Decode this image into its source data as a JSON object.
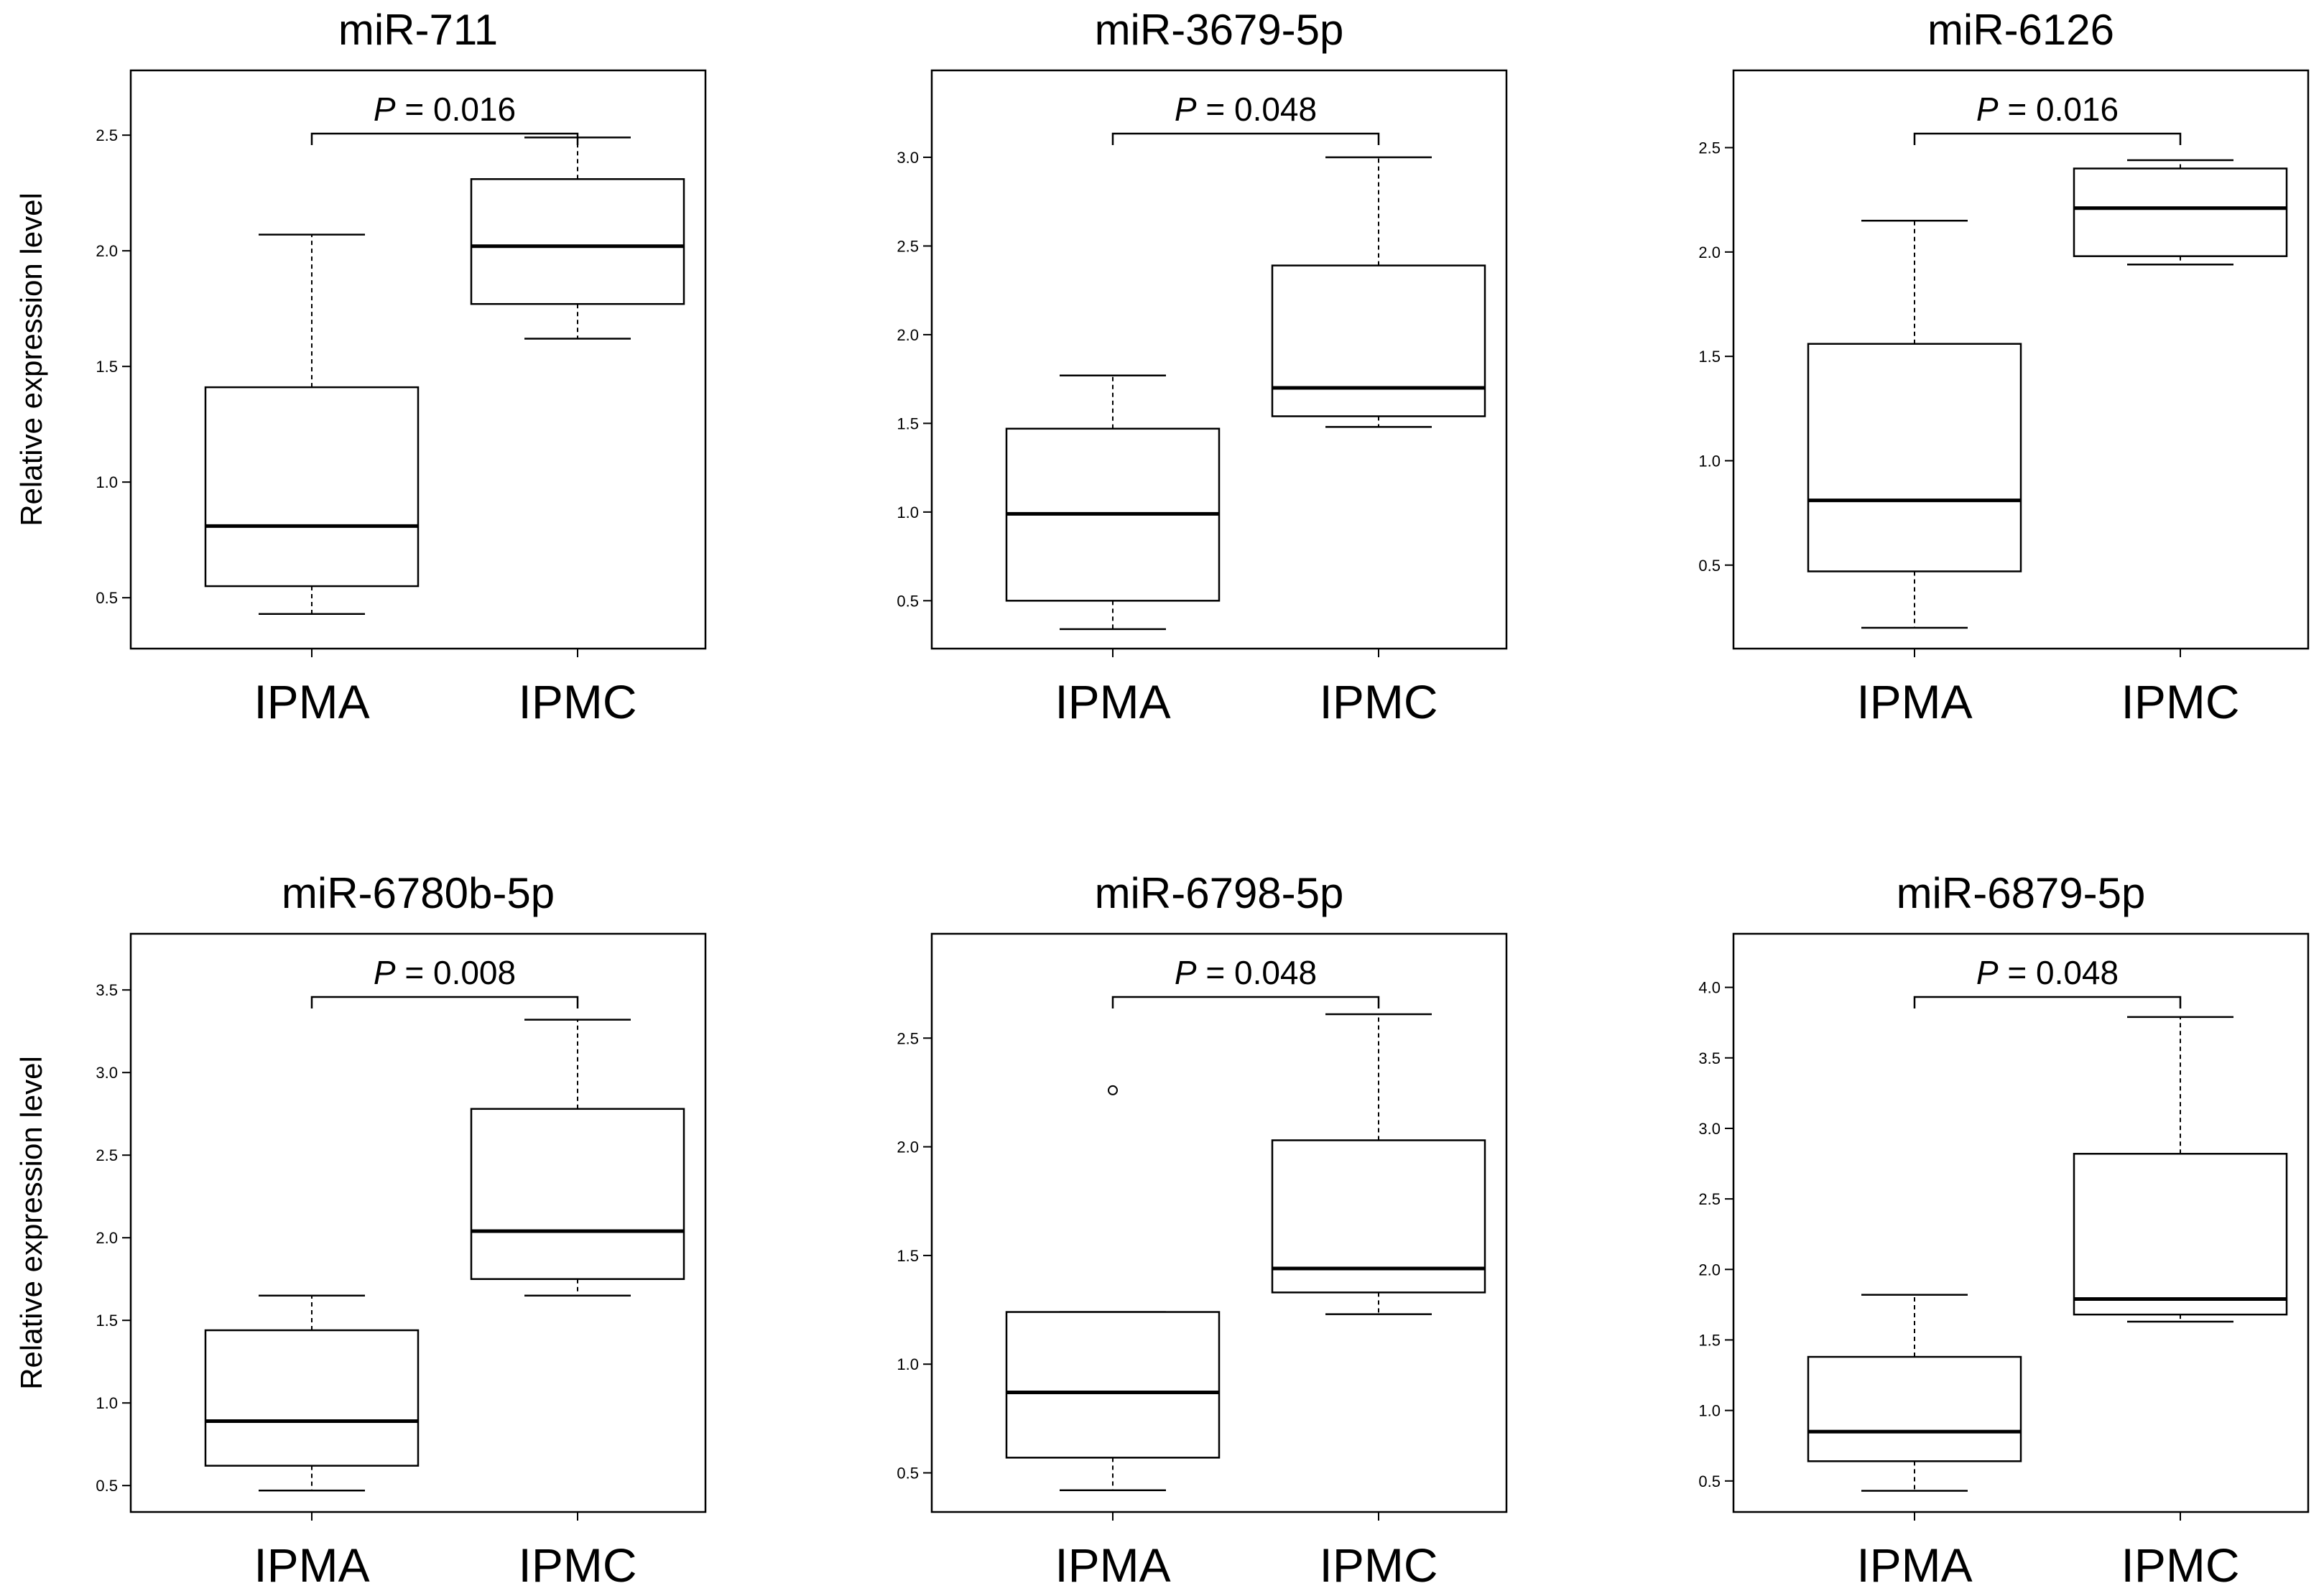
{
  "y_axis_label": "Relative expression level",
  "chart_data": [
    {
      "type": "boxplot",
      "title": "miR-711",
      "categories": [
        "IPMA",
        "IPMC"
      ],
      "ylabel": "Relative expression level",
      "ylim": [
        0.28,
        2.78
      ],
      "yticks": [
        "0.5",
        "1.0",
        "1.5",
        "2.0",
        "2.5"
      ],
      "p_value_prefix": "P",
      "p_value_text": " = 0.016",
      "series": [
        {
          "category": "IPMA",
          "min": 0.43,
          "q1": 0.55,
          "median": 0.81,
          "q3": 1.41,
          "max": 2.07,
          "outliers": []
        },
        {
          "category": "IPMC",
          "min": 1.62,
          "q1": 1.77,
          "median": 2.02,
          "q3": 2.31,
          "max": 2.49,
          "outliers": []
        }
      ]
    },
    {
      "type": "boxplot",
      "title": "miR-3679-5p",
      "categories": [
        "IPMA",
        "IPMC"
      ],
      "ylabel": "",
      "ylim": [
        0.23,
        3.49
      ],
      "yticks": [
        "0.5",
        "1.0",
        "1.5",
        "2.0",
        "2.5",
        "3.0"
      ],
      "p_value_prefix": "P",
      "p_value_text": " = 0.048",
      "series": [
        {
          "category": "IPMA",
          "min": 0.34,
          "q1": 0.5,
          "median": 0.99,
          "q3": 1.47,
          "max": 1.77,
          "outliers": []
        },
        {
          "category": "IPMC",
          "min": 1.48,
          "q1": 1.54,
          "median": 1.7,
          "q3": 2.39,
          "max": 3.0,
          "outliers": []
        }
      ]
    },
    {
      "type": "boxplot",
      "title": "miR-6126",
      "categories": [
        "IPMA",
        "IPMC"
      ],
      "ylabel": "",
      "ylim": [
        0.1,
        2.87
      ],
      "yticks": [
        "0.5",
        "1.0",
        "1.5",
        "2.0",
        "2.5"
      ],
      "p_value_prefix": "P",
      "p_value_text": " = 0.016",
      "series": [
        {
          "category": "IPMA",
          "min": 0.2,
          "q1": 0.47,
          "median": 0.81,
          "q3": 1.56,
          "max": 2.15,
          "outliers": []
        },
        {
          "category": "IPMC",
          "min": 1.94,
          "q1": 1.98,
          "median": 2.21,
          "q3": 2.4,
          "max": 2.44,
          "outliers": []
        }
      ]
    },
    {
      "type": "boxplot",
      "title": "miR-6780b-5p",
      "categories": [
        "IPMA",
        "IPMC"
      ],
      "ylabel": "Relative expression level",
      "ylim": [
        0.34,
        3.84
      ],
      "yticks": [
        "0.5",
        "1.0",
        "1.5",
        "2.0",
        "2.5",
        "3.0",
        "3.5"
      ],
      "p_value_prefix": "P",
      "p_value_text": " = 0.008",
      "series": [
        {
          "category": "IPMA",
          "min": 0.47,
          "q1": 0.62,
          "median": 0.89,
          "q3": 1.44,
          "max": 1.65,
          "outliers": []
        },
        {
          "category": "IPMC",
          "min": 1.65,
          "q1": 1.75,
          "median": 2.04,
          "q3": 2.78,
          "max": 3.32,
          "outliers": []
        }
      ]
    },
    {
      "type": "boxplot",
      "title": "miR-6798-5p",
      "categories": [
        "IPMA",
        "IPMC"
      ],
      "ylabel": "",
      "ylim": [
        0.32,
        2.98
      ],
      "yticks": [
        "0.5",
        "1.0",
        "1.5",
        "2.0",
        "2.5"
      ],
      "p_value_prefix": "P",
      "p_value_text": " = 0.048",
      "series": [
        {
          "category": "IPMA",
          "min": 0.42,
          "q1": 0.57,
          "median": 0.87,
          "q3": 1.24,
          "max": 1.24,
          "outliers": [
            2.26
          ]
        },
        {
          "category": "IPMC",
          "min": 1.23,
          "q1": 1.33,
          "median": 1.44,
          "q3": 2.03,
          "max": 2.61,
          "outliers": []
        }
      ]
    },
    {
      "type": "boxplot",
      "title": "miR-6879-5p",
      "categories": [
        "IPMA",
        "IPMC"
      ],
      "ylabel": "",
      "ylim": [
        0.28,
        4.38
      ],
      "yticks": [
        "0.5",
        "1.0",
        "1.5",
        "2.0",
        "2.5",
        "3.0",
        "3.5",
        "4.0"
      ],
      "p_value_prefix": "P",
      "p_value_text": " = 0.048",
      "series": [
        {
          "category": "IPMA",
          "min": 0.43,
          "q1": 0.64,
          "median": 0.85,
          "q3": 1.38,
          "max": 1.82,
          "outliers": []
        },
        {
          "category": "IPMC",
          "min": 1.63,
          "q1": 1.68,
          "median": 1.79,
          "q3": 2.82,
          "max": 3.79,
          "outliers": []
        }
      ]
    }
  ]
}
